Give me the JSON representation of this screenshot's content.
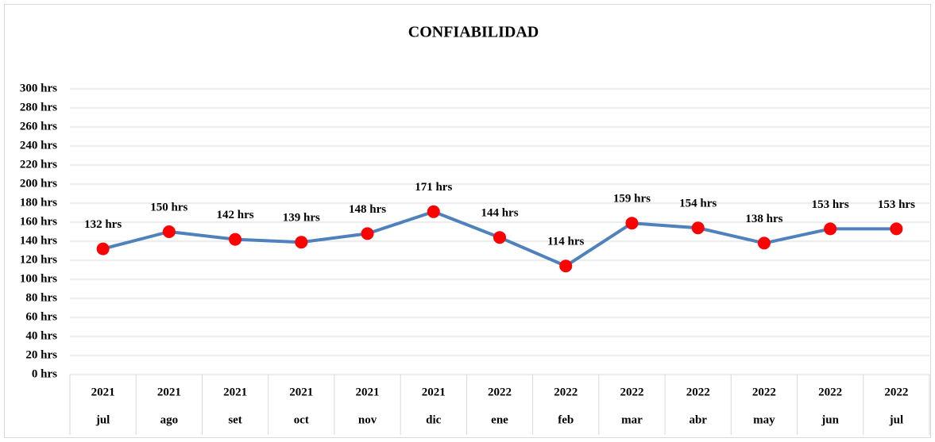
{
  "chart_data": {
    "type": "line",
    "title": "CONFIABILIDAD",
    "categories": [
      "jul",
      "ago",
      "set",
      "oct",
      "nov",
      "dic",
      "ene",
      "feb",
      "mar",
      "abr",
      "may",
      "jun",
      "jul"
    ],
    "category_groups": [
      "2021",
      "2021",
      "2021",
      "2021",
      "2021",
      "2021",
      "2022",
      "2022",
      "2022",
      "2022",
      "2022",
      "2022",
      "2022"
    ],
    "values": [
      132,
      150,
      142,
      139,
      148,
      171,
      144,
      114,
      159,
      154,
      138,
      153,
      153
    ],
    "value_labels": [
      "132 hrs",
      "150 hrs",
      "142 hrs",
      "139 hrs",
      "148 hrs",
      "171 hrs",
      "144 hrs",
      "114 hrs",
      "159 hrs",
      "154 hrs",
      "138 hrs",
      "153 hrs",
      "153 hrs"
    ],
    "color": "#4f81bd",
    "marker_color": "#ff0000",
    "ylim": [
      0,
      300
    ],
    "yticks": [
      {
        "value": 0,
        "label": "0 hrs"
      },
      {
        "value": 20,
        "label": "20 hrs"
      },
      {
        "value": 40,
        "label": "40 hrs"
      },
      {
        "value": 60,
        "label": "60 hrs"
      },
      {
        "value": 80,
        "label": "80 hrs"
      },
      {
        "value": 100,
        "label": "100 hrs"
      },
      {
        "value": 120,
        "label": "120 hrs"
      },
      {
        "value": 140,
        "label": "140 hrs"
      },
      {
        "value": 160,
        "label": "160 hrs"
      },
      {
        "value": 180,
        "label": "180 hrs"
      },
      {
        "value": 200,
        "label": "200 hrs"
      },
      {
        "value": 220,
        "label": "220 hrs"
      },
      {
        "value": 240,
        "label": "240 hrs"
      },
      {
        "value": 260,
        "label": "260 hrs"
      },
      {
        "value": 280,
        "label": "280 hrs"
      },
      {
        "value": 300,
        "label": "300 hrs"
      }
    ],
    "grid": true
  }
}
